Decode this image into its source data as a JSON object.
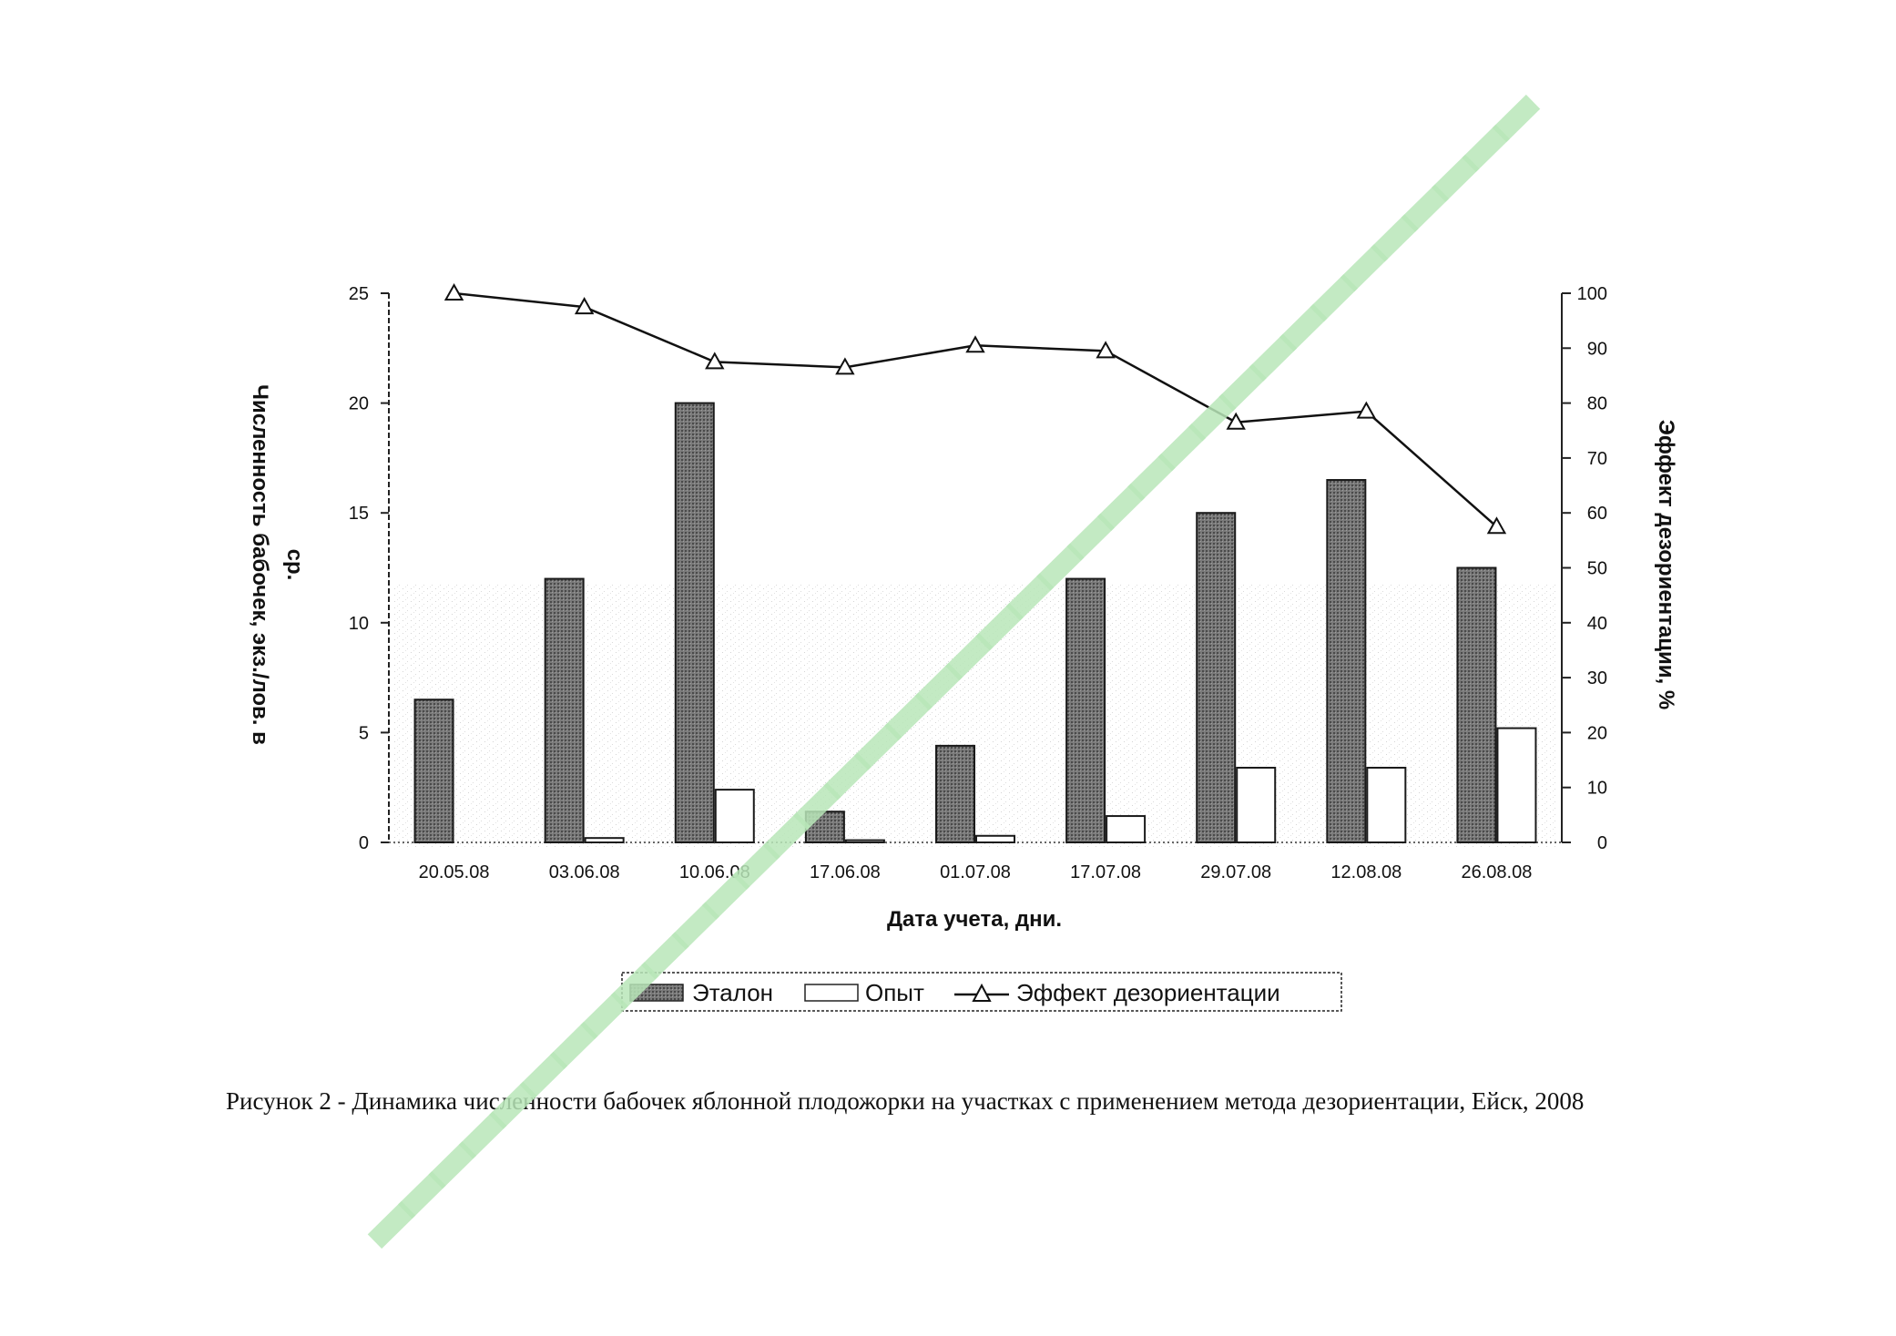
{
  "chart_data": {
    "type": "bar",
    "categories": [
      "20.05.08",
      "03.06.08",
      "10.06.08",
      "17.06.08",
      "01.07.08",
      "17.07.08",
      "29.07.08",
      "12.08.08",
      "26.08.08"
    ],
    "series": [
      {
        "name": "Эталон",
        "axis": "left",
        "kind": "bar",
        "values": [
          6.5,
          12,
          20,
          1.4,
          4.4,
          12,
          15,
          16.5,
          12.5
        ]
      },
      {
        "name": "Опыт",
        "axis": "left",
        "kind": "bar",
        "values": [
          0,
          0.2,
          2.4,
          0.1,
          0.3,
          1.2,
          3.4,
          3.4,
          5.2
        ]
      },
      {
        "name": "Эффект дезориентации",
        "axis": "right",
        "kind": "line",
        "marker": "triangle",
        "values": [
          100,
          97.5,
          87.5,
          86.5,
          90.5,
          89.5,
          76.5,
          78.5,
          57.5
        ]
      }
    ],
    "xlabel": "Дата учета, дни.",
    "ylabel": "Численность бабочек, экз./лов. в ср.",
    "ylabel_lines": [
      "Численность бабочек, экз./лов. в",
      "ср."
    ],
    "y2label": "Эффект дезориентации, %",
    "ylim": [
      0,
      25
    ],
    "y2lim": [
      0,
      100
    ],
    "yticks": [
      "0",
      "5",
      "10",
      "15",
      "20",
      "25"
    ],
    "y2ticks": [
      "0",
      "10",
      "20",
      "30",
      "40",
      "50",
      "60",
      "70",
      "80",
      "90",
      "100"
    ],
    "legend_position": "bottom",
    "grid": false
  },
  "legend": {
    "items": [
      "Эталон",
      "Опыт",
      "Эффект дезориентации"
    ]
  },
  "caption": "Рисунок 2 -  Динамика численности бабочек яблонной плодожорки на участках с применением метода дезориентации, Ейск, 2008",
  "colors": {
    "etalon_bar": "#6e6e6e",
    "opyt_bar": "#ffffff",
    "line": "#111111",
    "watermark": "#b8e6b8"
  }
}
